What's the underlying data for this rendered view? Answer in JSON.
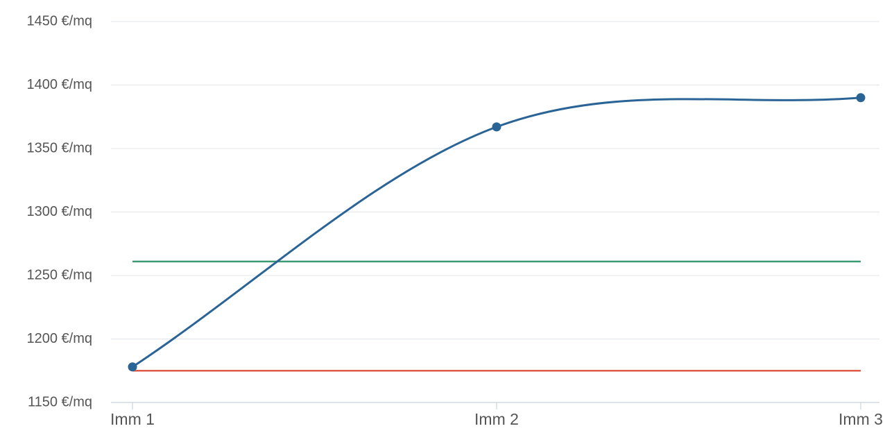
{
  "chart_data": {
    "type": "line",
    "categories": [
      "Imm 1",
      "Imm 2",
      "Imm 3"
    ],
    "y_unit_suffix": " €/mq",
    "ylim": [
      1150,
      1450
    ],
    "y_ticks": [
      1150,
      1200,
      1250,
      1300,
      1350,
      1400,
      1450
    ],
    "grid": true,
    "legend": "none",
    "series": [
      {
        "values": [
          1178,
          1367,
          1390
        ],
        "color": "#2a6496",
        "style": "smooth-markers"
      }
    ],
    "reference_lines": [
      {
        "value": 1261,
        "color": "#3a9a73"
      },
      {
        "value": 1175,
        "color": "#e05a4a"
      }
    ]
  }
}
